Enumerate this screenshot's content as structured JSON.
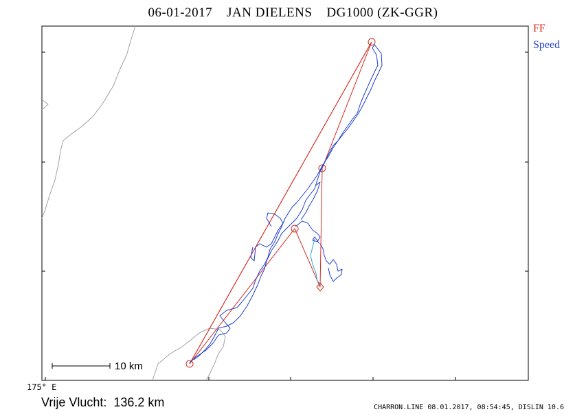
{
  "title": "06-01-2017    JAN DIELENS    DG1000 (ZK-GGR)",
  "legend": {
    "ff": "FF",
    "speed": "Speed"
  },
  "scale_bar": {
    "label": "10 km"
  },
  "longitude_label": "175° E",
  "distance_text": "Vrije Vlucht:  136.2 km",
  "footer": "CHARRON.LINE 08.01.2017, 08:54:45, DISLIN 10.6",
  "colors": {
    "ff": "#d42a1e",
    "speed": "#1f3fd0",
    "track_light": "#2aa7d8",
    "coast": "#a0a0a0",
    "frame": "#000000"
  }
}
